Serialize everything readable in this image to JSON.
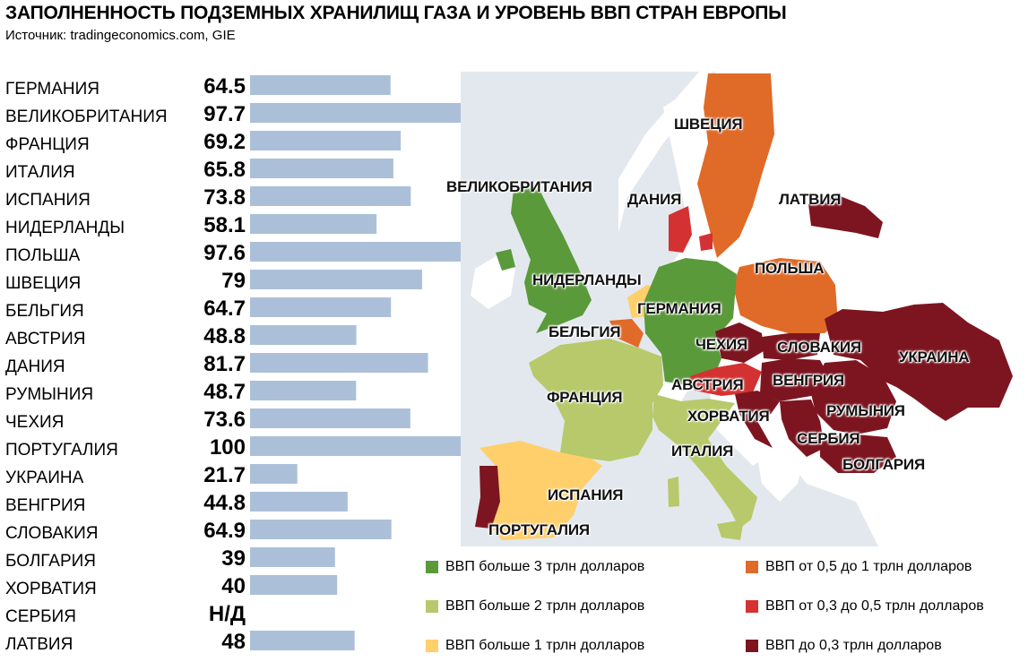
{
  "header": {
    "title": "ЗАПОЛНЕННОСТЬ ПОДЗЕМНЫХ ХРАНИЛИЩ ГАЗА И УРОВЕНЬ ВВП СТРАН ЕВРОПЫ",
    "source": "Источник: tradingeconomics.com, GIE"
  },
  "chart_data": [
    {
      "type": "bar",
      "orientation": "horizontal",
      "categories": [
        "ГЕРМАНИЯ",
        "ВЕЛИКОБРИТАНИЯ",
        "ФРАНЦИЯ",
        "ИТАЛИЯ",
        "ИСПАНИЯ",
        "НИДЕРЛАНДЫ",
        "ПОЛЬША",
        "ШВЕЦИЯ",
        "БЕЛЬГИЯ",
        "АВСТРИЯ",
        "ДАНИЯ",
        "РУМЫНИЯ",
        "ЧЕХИЯ",
        "ПОРТУГАЛИЯ",
        "УКРАИНА",
        "ВЕНГРИЯ",
        "СЛОВАКИЯ",
        "БОЛГАРИЯ",
        "ХОРВАТИЯ",
        "СЕРБИЯ",
        "ЛАТВИЯ"
      ],
      "values": [
        64.5,
        97.7,
        69.2,
        65.8,
        73.8,
        58.1,
        97.6,
        79,
        64.7,
        48.8,
        81.7,
        48.7,
        73.6,
        100,
        21.7,
        44.8,
        64.9,
        39,
        40,
        null,
        48
      ],
      "value_labels": [
        "64.5",
        "97.7",
        "69.2",
        "65.8",
        "73.8",
        "58.1",
        "97.6",
        "79",
        "64.7",
        "48.8",
        "81.7",
        "48.7",
        "73.6",
        "100",
        "21.7",
        "44.8",
        "64.9",
        "39",
        "40",
        "Н/Д",
        "48"
      ],
      "xlim": [
        0,
        100
      ],
      "bar_color": "#abc0d8",
      "grid": false
    },
    {
      "type": "choropleth",
      "regions": [
        {
          "name": "ШВЕЦИЯ",
          "category": "ВВП от 0,5 до 1 трлн долларов"
        },
        {
          "name": "ВЕЛИКОБРИТАНИЯ",
          "category": "ВВП больше 3 трлн долларов"
        },
        {
          "name": "ДАНИЯ",
          "category": "ВВП от 0,3 до 0,5 трлн долларов"
        },
        {
          "name": "ЛАТВИЯ",
          "category": "ВВП до 0,3 трлн долларов"
        },
        {
          "name": "ПОЛЬША",
          "category": "ВВП от 0,5 до 1 трлн долларов"
        },
        {
          "name": "НИДЕРЛАНДЫ",
          "category": "ВВП больше 1 трлн долларов"
        },
        {
          "name": "ГЕРМАНИЯ",
          "category": "ВВП больше 3 трлн долларов"
        },
        {
          "name": "БЕЛЬГИЯ",
          "category": "ВВП от 0,5 до 1 трлн долларов"
        },
        {
          "name": "ЧЕХИЯ",
          "category": "ВВП до 0,3 трлн долларов"
        },
        {
          "name": "СЛОВАКИЯ",
          "category": "ВВП до 0,3 трлн долларов"
        },
        {
          "name": "УКРАИНА",
          "category": "ВВП до 0,3 трлн долларов"
        },
        {
          "name": "АВСТРИЯ",
          "category": "ВВП от 0,3 до 0,5 трлн долларов"
        },
        {
          "name": "ВЕНГРИЯ",
          "category": "ВВП до 0,3 трлн долларов"
        },
        {
          "name": "ФРАНЦИЯ",
          "category": "ВВП больше 2 трлн долларов"
        },
        {
          "name": "РУМЫНИЯ",
          "category": "ВВП до 0,3 трлн долларов"
        },
        {
          "name": "ХОРВАТИЯ",
          "category": "ВВП до 0,3 трлн долларов"
        },
        {
          "name": "СЕРБИЯ",
          "category": "ВВП до 0,3 трлн долларов"
        },
        {
          "name": "ИТАЛИЯ",
          "category": "ВВП больше 2 трлн долларов"
        },
        {
          "name": "БОЛГАРИЯ",
          "category": "ВВП до 0,3 трлн долларов"
        },
        {
          "name": "ИСПАНИЯ",
          "category": "ВВП больше 1 трлн долларов"
        },
        {
          "name": "ПОРТУГАЛИЯ",
          "category": "ВВП до 0,3 трлн долларов"
        }
      ]
    }
  ],
  "legend": [
    {
      "label": "ВВП больше 3 трлн долларов",
      "color": "#5a9a3a"
    },
    {
      "label": "ВВП от 0,5 до 1 трлн долларов",
      "color": "#e06a28"
    },
    {
      "label": "ВВП больше 2 трлн долларов",
      "color": "#b7c96a"
    },
    {
      "label": "ВВП от 0,3 до 0,5 трлн долларов",
      "color": "#d43232"
    },
    {
      "label": "ВВП больше 1 трлн долларов",
      "color": "#ffcf6b"
    },
    {
      "label": "ВВП до 0,3 трлн долларов",
      "color": "#7d1520"
    }
  ],
  "colors": {
    "sea": "#e3e8ee",
    "other_land": "#ffffff",
    "bar": "#abc0d8"
  }
}
